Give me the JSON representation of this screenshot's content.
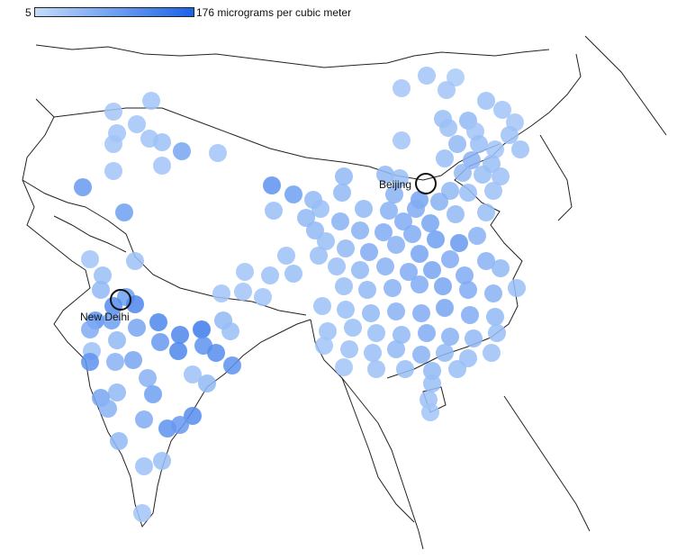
{
  "legend": {
    "min_label": "5",
    "max_label": "176 micrograms per cubic meter",
    "color_low": "#c3dcfb",
    "color_high": "#1b63e6"
  },
  "cities": [
    {
      "name": "Beijing"
    },
    {
      "name": "New Delhi"
    }
  ],
  "measurement_dots": [
    {
      "level": 0.15
    },
    {
      "level": 0.18
    },
    {
      "level": 0.2
    },
    {
      "level": 0.2
    },
    {
      "level": 0.22
    },
    {
      "level": 0.25
    },
    {
      "level": 0.3
    },
    {
      "level": 0.35
    },
    {
      "level": 0.4
    },
    {
      "level": 0.45
    },
    {
      "level": 0.5
    },
    {
      "level": 0.55
    },
    {
      "level": 0.6
    },
    {
      "level": 0.65
    },
    {
      "level": 0.7
    },
    {
      "level": 0.8
    },
    {
      "level": 0.9
    },
    {
      "level": 1.0
    }
  ]
}
